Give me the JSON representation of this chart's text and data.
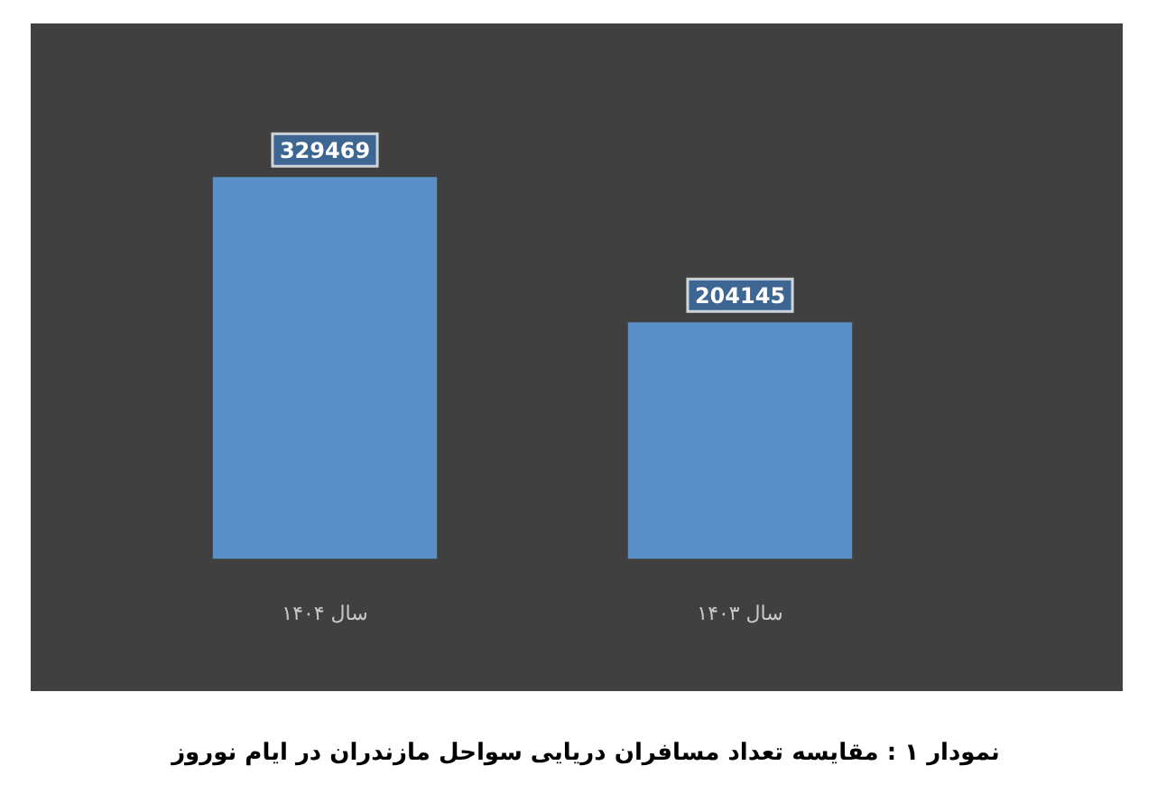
{
  "chart_data": {
    "type": "bar",
    "categories": [
      "سال ۱۴۰۴",
      "سال ۱۴۰۳"
    ],
    "values": [
      329469,
      204145
    ],
    "color": "#5b8fc7",
    "data_labels": true,
    "annotations": [
      "نمودار ۱ : مقایسه تعداد مسافران دریایی سواحل مازندران در ایام نوروز"
    ]
  }
}
